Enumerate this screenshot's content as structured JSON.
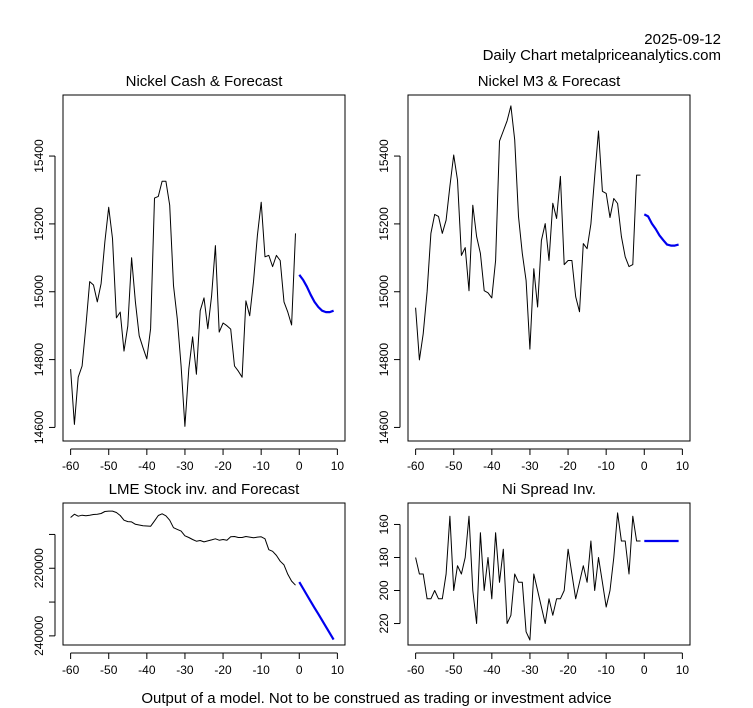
{
  "header": {
    "date": "2025-09-12",
    "subtitle": "Daily Chart metalpriceanalytics.com"
  },
  "footer": "Output of a model. Not to be construed as trading or investment advice",
  "colors": {
    "history": "#000000",
    "forecast": "#0000ee"
  },
  "chart_data": [
    {
      "id": "cash",
      "type": "line",
      "title": "Nickel Cash & Forecast",
      "xlabel": "",
      "ylabel": "",
      "xlim": [
        -62,
        12
      ],
      "ylim": [
        14560,
        15580
      ],
      "xticks": [
        -60,
        -50,
        -40,
        -30,
        -20,
        -10,
        0,
        10
      ],
      "yticks": [
        14600,
        14800,
        15000,
        15200,
        15400
      ],
      "inverted": false,
      "series": [
        {
          "name": "history",
          "x": [
            -60,
            -59,
            -58,
            -57,
            -56,
            -55,
            -54,
            -53,
            -52,
            -51,
            -50,
            -49,
            -48,
            -47,
            -46,
            -45,
            -44,
            -43,
            -42,
            -41,
            -40,
            -39,
            -38,
            -37,
            -36,
            -35,
            -34,
            -33,
            -32,
            -31,
            -30,
            -29,
            -28,
            -27,
            -26,
            -25,
            -24,
            -23,
            -22,
            -21,
            -20,
            -19,
            -18,
            -17,
            -16,
            -15,
            -14,
            -13,
            -12,
            -11,
            -10,
            -9,
            -8,
            -7,
            -6,
            -5,
            -4,
            -3,
            -2,
            -1
          ],
          "values": [
            14772,
            14609,
            14748,
            14781,
            14899,
            15030,
            15020,
            14970,
            15024,
            15148,
            15249,
            15157,
            14923,
            14940,
            14825,
            14899,
            15100,
            14970,
            14870,
            14835,
            14802,
            14891,
            15276,
            15281,
            15326,
            15326,
            15255,
            15018,
            14920,
            14781,
            14603,
            14772,
            14867,
            14757,
            14944,
            14982,
            14891,
            14988,
            15136,
            14881,
            14908,
            14900,
            14890,
            14781,
            14766,
            14748,
            14973,
            14929,
            15030,
            15166,
            15264,
            15103,
            15107,
            15074,
            15107,
            15092,
            14970,
            14940,
            14902,
            15172
          ]
        },
        {
          "name": "forecast",
          "x": [
            0,
            1,
            2,
            3,
            4,
            5,
            6,
            7,
            8,
            9
          ],
          "values": [
            15050,
            15035,
            15015,
            14991,
            14970,
            14955,
            14944,
            14940,
            14940,
            14944
          ]
        }
      ]
    },
    {
      "id": "m3",
      "type": "line",
      "title": "Nickel M3 & Forecast",
      "xlabel": "",
      "ylabel": "",
      "xlim": [
        -62,
        12
      ],
      "ylim": [
        14560,
        15580
      ],
      "xticks": [
        -60,
        -50,
        -40,
        -30,
        -20,
        -10,
        0,
        10
      ],
      "yticks": [
        14600,
        14800,
        15000,
        15200,
        15400
      ],
      "inverted": false,
      "series": [
        {
          "name": "history",
          "x": [
            -60,
            -59,
            -58,
            -57,
            -56,
            -55,
            -54,
            -53,
            -52,
            -51,
            -50,
            -49,
            -48,
            -47,
            -46,
            -45,
            -44,
            -43,
            -42,
            -41,
            -40,
            -39,
            -38,
            -37,
            -36,
            -35,
            -34,
            -33,
            -32,
            -31,
            -30,
            -29,
            -28,
            -27,
            -26,
            -25,
            -24,
            -23,
            -22,
            -21,
            -20,
            -19,
            -18,
            -17,
            -16,
            -15,
            -14,
            -13,
            -12,
            -11,
            -10,
            -9,
            -8,
            -7,
            -6,
            -5,
            -4,
            -3,
            -2,
            -1
          ],
          "values": [
            14953,
            14799,
            14876,
            15000,
            15172,
            15228,
            15222,
            15172,
            15211,
            15311,
            15403,
            15329,
            15107,
            15130,
            15003,
            15255,
            15163,
            15113,
            15003,
            14997,
            14982,
            15092,
            15444,
            15474,
            15504,
            15548,
            15448,
            15222,
            15113,
            15033,
            14831,
            15068,
            14955,
            15151,
            15201,
            15092,
            15261,
            15216,
            15340,
            15080,
            15092,
            15092,
            14985,
            14941,
            15142,
            15127,
            15200,
            15340,
            15474,
            15296,
            15290,
            15219,
            15275,
            15260,
            15163,
            15103,
            15074,
            15080,
            15344,
            15344
          ]
        },
        {
          "name": "forecast",
          "x": [
            0,
            1,
            2,
            3,
            4,
            5,
            6,
            7,
            8,
            9
          ],
          "values": [
            15228,
            15222,
            15201,
            15185,
            15166,
            15152,
            15139,
            15136,
            15136,
            15139
          ]
        }
      ]
    },
    {
      "id": "lme",
      "type": "line",
      "title": "LME Stock inv. and Forecast",
      "xlabel": "",
      "ylabel": "",
      "xlim": [
        -62,
        12
      ],
      "ylim": [
        242700,
        200700
      ],
      "xticks": [
        -60,
        -50,
        -40,
        -30,
        -20,
        -10,
        0,
        10
      ],
      "yticks": [
        210000,
        220000,
        230000,
        240000
      ],
      "ytick_labels": [
        "",
        "220000",
        "",
        "240000"
      ],
      "inverted": true,
      "series": [
        {
          "name": "history",
          "x": [
            -60,
            -59,
            -58,
            -57,
            -56,
            -55,
            -54,
            -53,
            -52,
            -51,
            -50,
            -49,
            -48,
            -47,
            -46,
            -45,
            -44,
            -43,
            -42,
            -41,
            -40,
            -39,
            -38,
            -37,
            -36,
            -35,
            -34,
            -33,
            -32,
            -31,
            -30,
            -29,
            -28,
            -27,
            -26,
            -25,
            -24,
            -23,
            -22,
            -21,
            -20,
            -19,
            -18,
            -17,
            -16,
            -15,
            -14,
            -13,
            -12,
            -11,
            -10,
            -9,
            -8,
            -7,
            -6,
            -5,
            -4,
            -3,
            -2,
            -1
          ],
          "values": [
            205000,
            204000,
            204600,
            204300,
            204500,
            204300,
            204100,
            204000,
            203800,
            203200,
            203100,
            203100,
            203500,
            204400,
            205800,
            206200,
            206300,
            207000,
            207200,
            207400,
            207500,
            207600,
            206000,
            204400,
            203900,
            204500,
            205800,
            208000,
            208500,
            209000,
            210400,
            210900,
            211500,
            212000,
            211800,
            212200,
            211900,
            211600,
            211300,
            211700,
            211500,
            211700,
            210700,
            210600,
            210900,
            210900,
            210600,
            210800,
            211000,
            210800,
            210700,
            211300,
            214500,
            215000,
            216200,
            217900,
            219000,
            221800,
            223800,
            225000
          ]
        },
        {
          "name": "forecast",
          "x": [
            0,
            1,
            2,
            3,
            4,
            5,
            6,
            7,
            8,
            9
          ],
          "values": [
            224100,
            226000,
            227900,
            229800,
            231700,
            233500,
            235400,
            237300,
            239200,
            241100
          ]
        }
      ]
    },
    {
      "id": "spread",
      "type": "line",
      "title": "Ni Spread Inv.",
      "xlabel": "",
      "ylabel": "",
      "xlim": [
        -62,
        12
      ],
      "ylim": [
        233,
        147
      ],
      "xticks": [
        -60,
        -50,
        -40,
        -30,
        -20,
        -10,
        0,
        10
      ],
      "yticks": [
        160,
        180,
        200,
        220
      ],
      "inverted": true,
      "series": [
        {
          "name": "history",
          "x": [
            -60,
            -59,
            -58,
            -57,
            -56,
            -55,
            -54,
            -53,
            -52,
            -51,
            -50,
            -49,
            -48,
            -47,
            -46,
            -45,
            -44,
            -43,
            -42,
            -41,
            -40,
            -39,
            -38,
            -37,
            -36,
            -35,
            -34,
            -33,
            -32,
            -31,
            -30,
            -29,
            -28,
            -27,
            -26,
            -25,
            -24,
            -23,
            -22,
            -21,
            -20,
            -19,
            -18,
            -17,
            -16,
            -15,
            -14,
            -13,
            -12,
            -11,
            -10,
            -9,
            -8,
            -7,
            -6,
            -5,
            -4,
            -3,
            -2,
            -1
          ],
          "values": [
            180,
            190,
            190,
            205,
            205,
            200,
            205,
            205,
            190,
            155,
            200,
            185,
            190,
            180,
            155,
            200,
            220,
            165,
            200,
            180,
            205,
            165,
            195,
            175,
            220,
            215,
            190,
            195,
            195,
            225,
            230,
            190,
            200,
            210,
            220,
            205,
            215,
            205,
            205,
            200,
            175,
            190,
            205,
            195,
            185,
            195,
            170,
            200,
            180,
            195,
            210,
            200,
            180,
            153,
            170,
            170,
            190,
            155,
            170,
            170
          ]
        },
        {
          "name": "forecast",
          "x": [
            0,
            1,
            2,
            3,
            4,
            5,
            6,
            7,
            8,
            9
          ],
          "values": [
            170,
            170,
            170,
            170,
            170,
            170,
            170,
            170,
            170,
            170
          ]
        }
      ]
    }
  ]
}
